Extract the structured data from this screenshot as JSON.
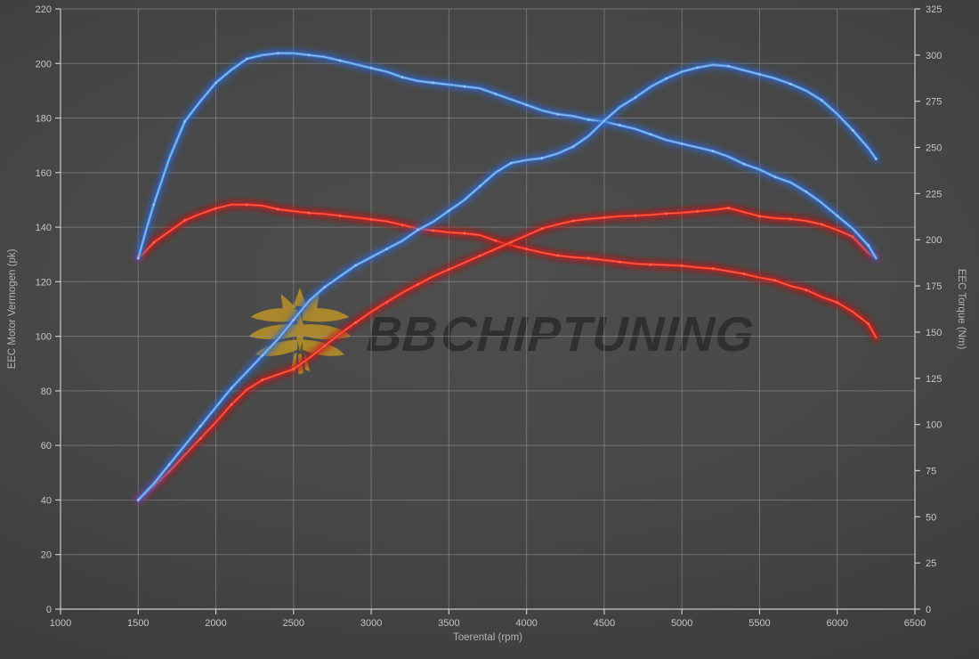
{
  "watermark": {
    "brand_bold": "BB",
    "brand_rest": "CHIPTUNING",
    "logo_color": "#b38c2b",
    "text_color": "rgba(42,42,42,0.82)"
  },
  "colors": {
    "background_center": "#4e4e4e",
    "background_edge": "#303030",
    "gridline": "#979797",
    "spine": "#c9c9c9",
    "tick_label": "#c6c6c6",
    "axis_title": "#b4b4b4",
    "blue_core": "#9cc3f0",
    "blue_mid": "#4a90e2",
    "blue_glow": "#2b66cc",
    "red_core": "#ff6a55",
    "red_mid": "#e02a22",
    "red_glow": "#c01414"
  },
  "chart_data": {
    "type": "line",
    "title": "",
    "legend": "none",
    "grid": true,
    "x_axis": {
      "label": "Toerental (rpm)",
      "min": 1000,
      "max": 6500,
      "tick_step": 500,
      "ticks": [
        1000,
        1500,
        2000,
        2500,
        3000,
        3500,
        4000,
        4500,
        5000,
        5500,
        6000,
        6500
      ]
    },
    "y_left": {
      "label": "EEC Motor Vermogen (pk)",
      "min": 0,
      "max": 220,
      "tick_step": 20,
      "ticks": [
        0,
        20,
        40,
        60,
        80,
        100,
        120,
        140,
        160,
        180,
        200,
        220
      ]
    },
    "y_right": {
      "label": "EEC Torque (Nm)",
      "min": 0,
      "max": 325,
      "tick_step": 25,
      "ticks": [
        0,
        25,
        50,
        75,
        100,
        125,
        150,
        175,
        200,
        225,
        250,
        275,
        300,
        325
      ]
    },
    "series": [
      {
        "name": "red-torque",
        "axis": "right",
        "unit": "Nm",
        "color_key": "red",
        "points": [
          [
            1500,
            190
          ],
          [
            1550,
            194
          ],
          [
            1600,
            198.5
          ],
          [
            1700,
            204.5
          ],
          [
            1800,
            210.5
          ],
          [
            1900,
            214
          ],
          [
            2000,
            217
          ],
          [
            2100,
            219
          ],
          [
            2200,
            219
          ],
          [
            2300,
            218.5
          ],
          [
            2400,
            216.5
          ],
          [
            2500,
            215.5
          ],
          [
            2600,
            214.5
          ],
          [
            2700,
            214
          ],
          [
            2800,
            213
          ],
          [
            2900,
            212
          ],
          [
            3000,
            211
          ],
          [
            3100,
            210
          ],
          [
            3200,
            208
          ],
          [
            3300,
            206
          ],
          [
            3400,
            205
          ],
          [
            3500,
            204
          ],
          [
            3600,
            203.5
          ],
          [
            3700,
            202.5
          ],
          [
            3800,
            199.5
          ],
          [
            3900,
            197
          ],
          [
            4000,
            195
          ],
          [
            4100,
            193
          ],
          [
            4200,
            191.5
          ],
          [
            4300,
            190.5
          ],
          [
            4400,
            190
          ],
          [
            4500,
            189
          ],
          [
            4600,
            188
          ],
          [
            4700,
            187
          ],
          [
            4800,
            186.6
          ],
          [
            4900,
            186.3
          ],
          [
            5000,
            186
          ],
          [
            5100,
            185
          ],
          [
            5200,
            184.4
          ],
          [
            5300,
            183
          ],
          [
            5400,
            181.5
          ],
          [
            5500,
            179.5
          ],
          [
            5600,
            178
          ],
          [
            5700,
            175
          ],
          [
            5800,
            172.8
          ],
          [
            5900,
            169
          ],
          [
            6000,
            166
          ],
          [
            6100,
            161
          ],
          [
            6200,
            154.5
          ],
          [
            6250,
            147
          ]
        ]
      },
      {
        "name": "red-power",
        "axis": "left",
        "unit": "pk",
        "color_key": "red",
        "points": [
          [
            1500,
            40
          ],
          [
            1600,
            45
          ],
          [
            1700,
            50.5
          ],
          [
            1800,
            56.5
          ],
          [
            1900,
            62.5
          ],
          [
            2000,
            68.5
          ],
          [
            2100,
            75
          ],
          [
            2200,
            80.5
          ],
          [
            2300,
            84
          ],
          [
            2400,
            86
          ],
          [
            2500,
            88
          ],
          [
            2600,
            92
          ],
          [
            2700,
            96.5
          ],
          [
            2800,
            101
          ],
          [
            2900,
            105
          ],
          [
            3000,
            109
          ],
          [
            3100,
            112.5
          ],
          [
            3200,
            116
          ],
          [
            3300,
            119
          ],
          [
            3400,
            122
          ],
          [
            3500,
            124.5
          ],
          [
            3600,
            127
          ],
          [
            3700,
            129.5
          ],
          [
            3800,
            132
          ],
          [
            3900,
            134.5
          ],
          [
            4000,
            137
          ],
          [
            4100,
            139.5
          ],
          [
            4200,
            141
          ],
          [
            4300,
            142.3
          ],
          [
            4400,
            143
          ],
          [
            4500,
            143.5
          ],
          [
            4600,
            144
          ],
          [
            4700,
            144.2
          ],
          [
            4800,
            144.5
          ],
          [
            4900,
            145
          ],
          [
            5000,
            145.3
          ],
          [
            5100,
            145.8
          ],
          [
            5200,
            146.3
          ],
          [
            5300,
            147
          ],
          [
            5400,
            145.5
          ],
          [
            5500,
            144
          ],
          [
            5600,
            143.3
          ],
          [
            5700,
            143
          ],
          [
            5800,
            142.3
          ],
          [
            5900,
            141
          ],
          [
            6000,
            139
          ],
          [
            6100,
            136.5
          ],
          [
            6200,
            130.5
          ],
          [
            6250,
            129
          ]
        ]
      },
      {
        "name": "blue-torque",
        "axis": "right",
        "unit": "Nm",
        "color_key": "blue",
        "points": [
          [
            1500,
            190
          ],
          [
            1550,
            205
          ],
          [
            1600,
            219
          ],
          [
            1700,
            244
          ],
          [
            1800,
            264
          ],
          [
            1900,
            275
          ],
          [
            2000,
            285
          ],
          [
            2100,
            292
          ],
          [
            2200,
            298
          ],
          [
            2300,
            300
          ],
          [
            2400,
            301
          ],
          [
            2500,
            301
          ],
          [
            2600,
            300
          ],
          [
            2700,
            299
          ],
          [
            2800,
            297
          ],
          [
            2900,
            295
          ],
          [
            3000,
            293
          ],
          [
            3100,
            291
          ],
          [
            3200,
            288
          ],
          [
            3300,
            286
          ],
          [
            3400,
            285
          ],
          [
            3500,
            284
          ],
          [
            3600,
            283
          ],
          [
            3700,
            282
          ],
          [
            3800,
            279
          ],
          [
            3900,
            276
          ],
          [
            4000,
            273
          ],
          [
            4100,
            270
          ],
          [
            4200,
            268
          ],
          [
            4300,
            267
          ],
          [
            4400,
            265
          ],
          [
            4500,
            264
          ],
          [
            4600,
            262
          ],
          [
            4700,
            260
          ],
          [
            4800,
            257
          ],
          [
            4900,
            254
          ],
          [
            5000,
            252
          ],
          [
            5100,
            250
          ],
          [
            5200,
            248
          ],
          [
            5300,
            245
          ],
          [
            5400,
            241
          ],
          [
            5500,
            238
          ],
          [
            5600,
            234
          ],
          [
            5700,
            231
          ],
          [
            5800,
            226
          ],
          [
            5900,
            220
          ],
          [
            6000,
            213
          ],
          [
            6100,
            206
          ],
          [
            6200,
            197
          ],
          [
            6250,
            190
          ]
        ]
      },
      {
        "name": "blue-power",
        "axis": "left",
        "unit": "pk",
        "color_key": "blue",
        "points": [
          [
            1500,
            40
          ],
          [
            1600,
            46
          ],
          [
            1700,
            53
          ],
          [
            1800,
            60
          ],
          [
            1900,
            67
          ],
          [
            2000,
            74
          ],
          [
            2100,
            81
          ],
          [
            2200,
            87
          ],
          [
            2300,
            93
          ],
          [
            2400,
            99
          ],
          [
            2500,
            106
          ],
          [
            2600,
            113
          ],
          [
            2700,
            118
          ],
          [
            2800,
            122
          ],
          [
            2900,
            126
          ],
          [
            3000,
            129
          ],
          [
            3100,
            132
          ],
          [
            3200,
            135
          ],
          [
            3300,
            139
          ],
          [
            3400,
            142
          ],
          [
            3500,
            146
          ],
          [
            3600,
            150
          ],
          [
            3700,
            155
          ],
          [
            3800,
            160
          ],
          [
            3900,
            163.5
          ],
          [
            4000,
            164.6
          ],
          [
            4100,
            165.3
          ],
          [
            4200,
            167
          ],
          [
            4300,
            169.5
          ],
          [
            4400,
            173.5
          ],
          [
            4500,
            179
          ],
          [
            4600,
            184
          ],
          [
            4700,
            187.5
          ],
          [
            4800,
            191.5
          ],
          [
            4900,
            194.5
          ],
          [
            5000,
            197
          ],
          [
            5100,
            198.5
          ],
          [
            5200,
            199.5
          ],
          [
            5300,
            199
          ],
          [
            5400,
            197.5
          ],
          [
            5500,
            196
          ],
          [
            5600,
            194.5
          ],
          [
            5700,
            192.5
          ],
          [
            5800,
            190
          ],
          [
            5900,
            186.5
          ],
          [
            6000,
            181.5
          ],
          [
            6100,
            175.5
          ],
          [
            6200,
            169
          ],
          [
            6250,
            165
          ]
        ]
      }
    ]
  }
}
